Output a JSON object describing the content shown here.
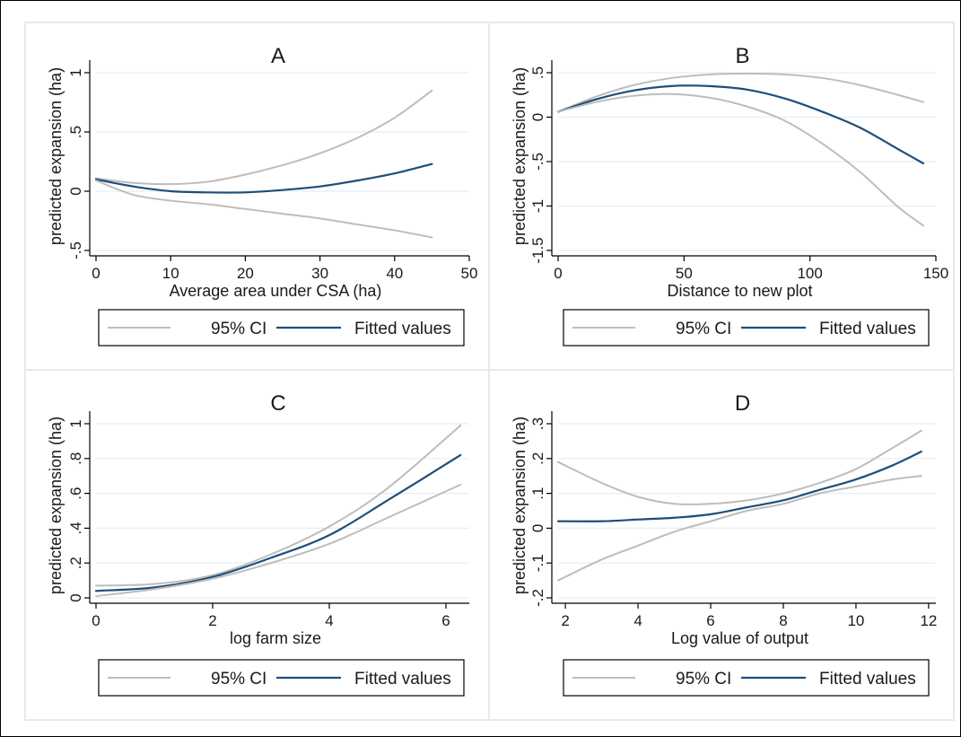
{
  "chart_data": [
    {
      "type": "line",
      "title": "A",
      "xlabel": "Average area under CSA (ha)",
      "ylabel": "predicted expansion (ha)",
      "xlim": [
        0,
        50
      ],
      "ylim": [
        -0.5,
        1
      ],
      "xticks": [
        0,
        10,
        20,
        30,
        40,
        50
      ],
      "xtick_labels": [
        "0",
        "10",
        "20",
        "30",
        "40",
        "50"
      ],
      "yticks": [
        -0.5,
        0,
        0.5,
        1
      ],
      "ytick_labels": [
        "-.5",
        "0",
        ".5",
        "1"
      ],
      "grid": true,
      "legend": "bottom",
      "legend_labels": [
        "95% CI",
        "Fitted values"
      ],
      "x": [
        0,
        5,
        10,
        15,
        20,
        25,
        30,
        35,
        40,
        45
      ],
      "series": [
        {
          "role": "ci_upper",
          "values": [
            0.11,
            0.07,
            0.06,
            0.08,
            0.14,
            0.22,
            0.32,
            0.45,
            0.62,
            0.85
          ]
        },
        {
          "role": "fitted",
          "values": [
            0.1,
            0.04,
            0.0,
            -0.01,
            -0.01,
            0.01,
            0.04,
            0.09,
            0.15,
            0.23
          ]
        },
        {
          "role": "ci_lower",
          "values": [
            0.09,
            -0.03,
            -0.08,
            -0.11,
            -0.15,
            -0.19,
            -0.23,
            -0.28,
            -0.33,
            -0.39
          ]
        }
      ]
    },
    {
      "type": "line",
      "title": "B",
      "xlabel": "Distance to new plot",
      "ylabel": "predicted expansion (ha)",
      "xlim": [
        0,
        150
      ],
      "ylim": [
        -1.5,
        0.5
      ],
      "xticks": [
        0,
        50,
        100,
        150
      ],
      "xtick_labels": [
        "0",
        "50",
        "100",
        "150"
      ],
      "yticks": [
        -1.5,
        -1,
        -0.5,
        0,
        0.5
      ],
      "ytick_labels": [
        "-1.5",
        "-1",
        "-.5",
        "0",
        ".5"
      ],
      "grid": true,
      "legend": "bottom",
      "legend_labels": [
        "95% CI",
        "Fitted values"
      ],
      "x": [
        0,
        15,
        30,
        45,
        60,
        75,
        90,
        105,
        120,
        135,
        145
      ],
      "series": [
        {
          "role": "ci_upper",
          "values": [
            0.06,
            0.23,
            0.36,
            0.44,
            0.48,
            0.49,
            0.48,
            0.44,
            0.36,
            0.25,
            0.17
          ]
        },
        {
          "role": "fitted",
          "values": [
            0.06,
            0.2,
            0.3,
            0.35,
            0.35,
            0.31,
            0.21,
            0.06,
            -0.12,
            -0.36,
            -0.52
          ]
        },
        {
          "role": "ci_lower",
          "values": [
            0.06,
            0.17,
            0.24,
            0.26,
            0.22,
            0.12,
            -0.04,
            -0.3,
            -0.62,
            -1.01,
            -1.22
          ]
        }
      ]
    },
    {
      "type": "line",
      "title": "C",
      "xlabel": "log farm size",
      "ylabel": "predicted expansion (ha)",
      "xlim": [
        0,
        6.4
      ],
      "ylim": [
        0,
        1
      ],
      "xticks": [
        0,
        2,
        4,
        6
      ],
      "xtick_labels": [
        "0",
        "2",
        "4",
        "6"
      ],
      "yticks": [
        0,
        0.2,
        0.4,
        0.6,
        0.8,
        1
      ],
      "ytick_labels": [
        "0",
        ".2",
        ".4",
        ".6",
        ".8",
        "1"
      ],
      "grid": true,
      "legend": "bottom",
      "legend_labels": [
        "95% CI",
        "Fitted values"
      ],
      "x": [
        0,
        1,
        2,
        3,
        4,
        5,
        6.25
      ],
      "series": [
        {
          "role": "ci_upper",
          "values": [
            0.07,
            0.08,
            0.13,
            0.25,
            0.41,
            0.63,
            0.99
          ]
        },
        {
          "role": "fitted",
          "values": [
            0.04,
            0.06,
            0.12,
            0.23,
            0.36,
            0.56,
            0.82
          ]
        },
        {
          "role": "ci_lower",
          "values": [
            0.01,
            0.05,
            0.11,
            0.2,
            0.31,
            0.46,
            0.65
          ]
        }
      ]
    },
    {
      "type": "line",
      "title": "D",
      "xlabel": "Log value of output",
      "ylabel": "predicted expansion (ha)",
      "xlim": [
        1.8,
        12.2
      ],
      "ylim": [
        -0.2,
        0.3
      ],
      "xticks": [
        2,
        4,
        6,
        8,
        10,
        12
      ],
      "xtick_labels": [
        "2",
        "4",
        "6",
        "8",
        "10",
        "12"
      ],
      "yticks": [
        -0.2,
        -0.1,
        0,
        0.1,
        0.2,
        0.3
      ],
      "ytick_labels": [
        "-.2",
        "-.1",
        "0",
        ".1",
        ".2",
        ".3"
      ],
      "grid": true,
      "legend": "bottom",
      "legend_labels": [
        "95% CI",
        "Fitted values"
      ],
      "x": [
        1.8,
        3,
        4,
        5,
        6,
        7,
        8,
        9,
        10,
        11,
        11.8
      ],
      "series": [
        {
          "role": "ci_upper",
          "values": [
            0.19,
            0.13,
            0.09,
            0.07,
            0.07,
            0.08,
            0.1,
            0.13,
            0.17,
            0.23,
            0.28
          ]
        },
        {
          "role": "fitted",
          "values": [
            0.02,
            0.02,
            0.025,
            0.03,
            0.04,
            0.06,
            0.08,
            0.11,
            0.14,
            0.18,
            0.22
          ]
        },
        {
          "role": "ci_lower",
          "values": [
            -0.15,
            -0.09,
            -0.05,
            -0.01,
            0.02,
            0.05,
            0.07,
            0.1,
            0.12,
            0.14,
            0.15
          ]
        }
      ]
    }
  ],
  "colors": {
    "ci": "#bdbdbd",
    "fitted": "#1f4e79",
    "grid": "#e6eef2",
    "axis": "#000000",
    "panel_border": "#e3ebef",
    "figure_border": "#000000"
  }
}
